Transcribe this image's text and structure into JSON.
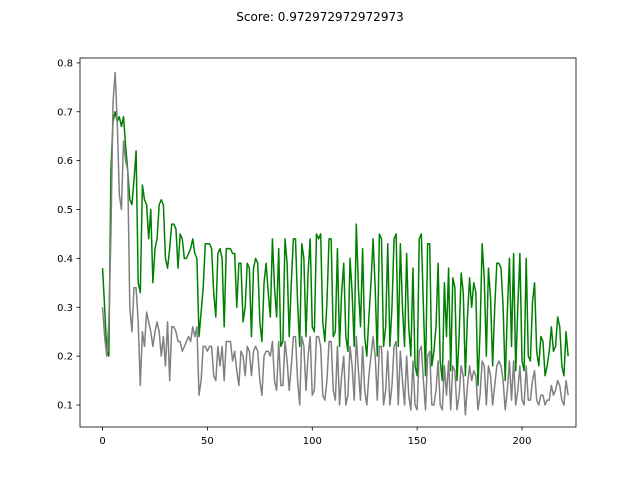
{
  "chart_data": {
    "type": "line",
    "title": "Score: 0.972972972972973",
    "xlabel": "",
    "ylabel": "",
    "xlim": [
      -10.75,
      225.75
    ],
    "ylim": [
      0.055,
      0.81
    ],
    "x_ticks": [
      0,
      50,
      100,
      150,
      200
    ],
    "y_ticks": [
      0.1,
      0.2,
      0.3,
      0.4,
      0.5,
      0.6,
      0.7,
      0.8
    ],
    "grid": false,
    "legend": "none",
    "series": [
      {
        "color": "#008000",
        "x_start": 0,
        "values": [
          0.38,
          0.3,
          0.21,
          0.2,
          0.58,
          0.68,
          0.7,
          0.68,
          0.69,
          0.67,
          0.69,
          0.63,
          0.58,
          0.52,
          0.51,
          0.56,
          0.62,
          0.35,
          0.33,
          0.55,
          0.52,
          0.51,
          0.44,
          0.5,
          0.35,
          0.42,
          0.44,
          0.51,
          0.52,
          0.51,
          0.4,
          0.38,
          0.42,
          0.47,
          0.47,
          0.46,
          0.38,
          0.45,
          0.44,
          0.4,
          0.4,
          0.41,
          0.42,
          0.44,
          0.41,
          0.4,
          0.24,
          0.29,
          0.34,
          0.43,
          0.43,
          0.43,
          0.42,
          0.33,
          0.28,
          0.41,
          0.42,
          0.4,
          0.26,
          0.42,
          0.42,
          0.42,
          0.41,
          0.41,
          0.3,
          0.39,
          0.39,
          0.27,
          0.3,
          0.39,
          0.38,
          0.24,
          0.38,
          0.4,
          0.39,
          0.27,
          0.23,
          0.35,
          0.39,
          0.33,
          0.28,
          0.44,
          0.34,
          0.28,
          0.42,
          0.22,
          0.23,
          0.44,
          0.39,
          0.24,
          0.35,
          0.44,
          0.44,
          0.31,
          0.22,
          0.43,
          0.4,
          0.24,
          0.37,
          0.44,
          0.26,
          0.25,
          0.45,
          0.44,
          0.45,
          0.27,
          0.23,
          0.31,
          0.44,
          0.44,
          0.24,
          0.25,
          0.42,
          0.22,
          0.33,
          0.39,
          0.24,
          0.21,
          0.4,
          0.33,
          0.22,
          0.47,
          0.34,
          0.26,
          0.42,
          0.24,
          0.2,
          0.28,
          0.35,
          0.44,
          0.34,
          0.2,
          0.45,
          0.44,
          0.22,
          0.26,
          0.43,
          0.22,
          0.3,
          0.44,
          0.45,
          0.22,
          0.43,
          0.3,
          0.22,
          0.41,
          0.26,
          0.2,
          0.38,
          0.18,
          0.16,
          0.44,
          0.45,
          0.3,
          0.16,
          0.43,
          0.43,
          0.18,
          0.21,
          0.26,
          0.39,
          0.19,
          0.15,
          0.35,
          0.24,
          0.38,
          0.17,
          0.36,
          0.34,
          0.15,
          0.24,
          0.37,
          0.33,
          0.16,
          0.28,
          0.36,
          0.3,
          0.35,
          0.33,
          0.14,
          0.25,
          0.43,
          0.36,
          0.2,
          0.38,
          0.32,
          0.18,
          0.3,
          0.39,
          0.39,
          0.38,
          0.3,
          0.15,
          0.29,
          0.4,
          0.22,
          0.41,
          0.17,
          0.3,
          0.41,
          0.19,
          0.17,
          0.4,
          0.2,
          0.19,
          0.31,
          0.35,
          0.21,
          0.18,
          0.24,
          0.23,
          0.16,
          0.18,
          0.21,
          0.26,
          0.21,
          0.22,
          0.28,
          0.26,
          0.18,
          0.16,
          0.25,
          0.2
        ]
      },
      {
        "color": "#808080",
        "x_start": 0,
        "values": [
          0.3,
          0.24,
          0.2,
          0.27,
          0.45,
          0.72,
          0.78,
          0.68,
          0.53,
          0.5,
          0.64,
          0.6,
          0.58,
          0.3,
          0.25,
          0.34,
          0.34,
          0.27,
          0.14,
          0.25,
          0.22,
          0.29,
          0.27,
          0.25,
          0.22,
          0.25,
          0.27,
          0.25,
          0.2,
          0.24,
          0.18,
          0.27,
          0.15,
          0.26,
          0.26,
          0.25,
          0.23,
          0.23,
          0.21,
          0.22,
          0.23,
          0.24,
          0.23,
          0.26,
          0.24,
          0.26,
          0.12,
          0.15,
          0.22,
          0.22,
          0.21,
          0.22,
          0.22,
          0.16,
          0.15,
          0.22,
          0.18,
          0.22,
          0.15,
          0.23,
          0.23,
          0.23,
          0.19,
          0.21,
          0.17,
          0.14,
          0.21,
          0.2,
          0.16,
          0.22,
          0.21,
          0.16,
          0.21,
          0.22,
          0.21,
          0.15,
          0.12,
          0.2,
          0.21,
          0.21,
          0.2,
          0.23,
          0.15,
          0.13,
          0.23,
          0.14,
          0.14,
          0.23,
          0.19,
          0.13,
          0.18,
          0.24,
          0.24,
          0.15,
          0.1,
          0.24,
          0.22,
          0.13,
          0.2,
          0.24,
          0.12,
          0.13,
          0.24,
          0.24,
          0.22,
          0.12,
          0.11,
          0.15,
          0.23,
          0.23,
          0.13,
          0.11,
          0.22,
          0.1,
          0.16,
          0.2,
          0.1,
          0.12,
          0.22,
          0.18,
          0.11,
          0.24,
          0.17,
          0.11,
          0.22,
          0.13,
          0.1,
          0.16,
          0.2,
          0.24,
          0.2,
          0.11,
          0.22,
          0.22,
          0.1,
          0.13,
          0.21,
          0.1,
          0.14,
          0.22,
          0.23,
          0.1,
          0.21,
          0.15,
          0.1,
          0.2,
          0.12,
          0.09,
          0.19,
          0.1,
          0.09,
          0.21,
          0.22,
          0.15,
          0.09,
          0.2,
          0.21,
          0.1,
          0.1,
          0.13,
          0.19,
          0.1,
          0.09,
          0.18,
          0.12,
          0.19,
          0.09,
          0.18,
          0.17,
          0.09,
          0.12,
          0.18,
          0.16,
          0.08,
          0.14,
          0.18,
          0.15,
          0.17,
          0.16,
          0.09,
          0.12,
          0.19,
          0.18,
          0.1,
          0.18,
          0.16,
          0.1,
          0.14,
          0.18,
          0.19,
          0.18,
          0.15,
          0.09,
          0.13,
          0.19,
          0.11,
          0.19,
          0.1,
          0.13,
          0.18,
          0.11,
          0.1,
          0.18,
          0.11,
          0.11,
          0.15,
          0.17,
          0.11,
          0.1,
          0.12,
          0.12,
          0.1,
          0.11,
          0.11,
          0.14,
          0.12,
          0.13,
          0.15,
          0.14,
          0.11,
          0.1,
          0.15,
          0.12
        ]
      }
    ]
  }
}
